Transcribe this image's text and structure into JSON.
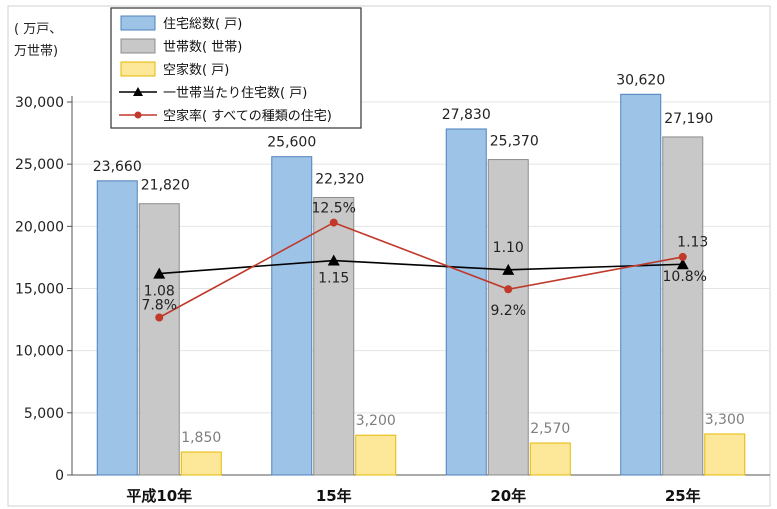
{
  "chart_data": {
    "type": "bar",
    "unit_label_line1": "( 万戸、",
    "unit_label_line2": "万世帯)",
    "categories": [
      "平成10年",
      "15年",
      "20年",
      "25年"
    ],
    "ylim": [
      0,
      30000
    ],
    "yticks": [
      0,
      5000,
      10000,
      15000,
      20000,
      25000,
      30000
    ],
    "ytick_labels": [
      "0",
      "5,000",
      "10,000",
      "15,000",
      "20,000",
      "25,000",
      "30,000"
    ],
    "legend_position": "top-left",
    "series": [
      {
        "name": "住宅総数( 戸)",
        "kind": "bar",
        "color": "#9dc3e6",
        "stroke": "#4f81bd",
        "values": [
          23660,
          25600,
          27830,
          30620
        ],
        "labels": [
          "23,660",
          "25,600",
          "27,830",
          "30,620"
        ]
      },
      {
        "name": "世帯数( 世帯)",
        "kind": "bar",
        "color": "#c8c8c8",
        "stroke": "#8c8c8c",
        "values": [
          21820,
          22320,
          25370,
          27190
        ],
        "labels": [
          "21,820",
          "22,320",
          "25,370",
          "27,190"
        ]
      },
      {
        "name": "空家数( 戸)",
        "kind": "bar",
        "color": "#fde89a",
        "stroke": "#e6b800",
        "values": [
          1850,
          3200,
          2570,
          3300
        ],
        "labels": [
          "1,850",
          "3,200",
          "2,570",
          "3,300"
        ]
      },
      {
        "name": "一世帯当たり住宅数( 戸)",
        "kind": "line",
        "marker": "triangle",
        "color": "#000000",
        "values": [
          1.08,
          1.15,
          1.1,
          1.13
        ],
        "labels": [
          "1.08",
          "1.15",
          "1.10",
          "1.13"
        ]
      },
      {
        "name": "空家率( すべての種類の住宅)",
        "kind": "line",
        "marker": "circle",
        "color": "#c0392b",
        "values": [
          7.8,
          12.5,
          9.2,
          10.8
        ],
        "labels": [
          "7.8%",
          "12.5%",
          "9.2%",
          "10.8%"
        ]
      }
    ]
  }
}
